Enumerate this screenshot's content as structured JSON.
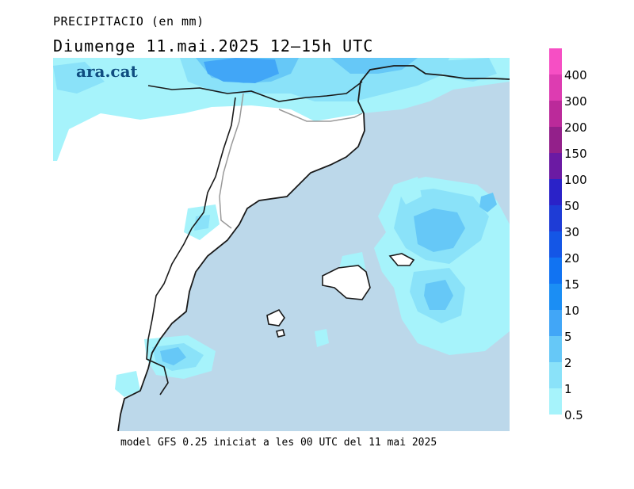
{
  "title": "PRECIPITACIO (en mm)",
  "subtitle": "Diumenge  11.mai.2025  12–15h  UTC",
  "logo": "ara.cat",
  "footer": "model GFS 0.25 iniciat a les 00 UTC del 11 mai 2025",
  "colors": {
    "sea": "#bcd8ea",
    "land": "#ffffff",
    "coast": "#1a1a1a",
    "border": "#9a9a9a"
  },
  "legend": {
    "labels": [
      "400",
      "300",
      "200",
      "150",
      "100",
      "50",
      "30",
      "20",
      "15",
      "10",
      "5",
      "2",
      "1",
      "0.5"
    ],
    "colors": [
      "#f64fc4",
      "#dd3cb1",
      "#bb2a9a",
      "#93208a",
      "#6b1aa3",
      "#2a22c8",
      "#1e3cd6",
      "#1456e6",
      "#1173f2",
      "#1b8ef4",
      "#41a6f7",
      "#66c8f7",
      "#8ae2f9",
      "#a6f3fb"
    ]
  }
}
